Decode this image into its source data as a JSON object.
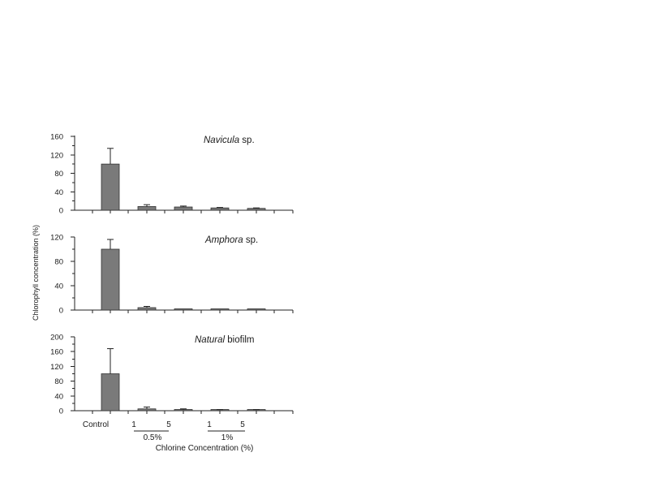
{
  "chart_data": [
    {
      "type": "bar",
      "title_italic": "Navicula",
      "title_rest": " sp.",
      "categories": [
        "Control",
        "0.5% 1",
        "0.5% 5",
        "1% 1",
        "1% 5"
      ],
      "values": [
        100,
        8,
        7,
        5,
        4
      ],
      "errors": [
        34,
        4,
        2,
        1,
        1
      ],
      "ylim": [
        0,
        160
      ],
      "yticks": [
        "0",
        "40",
        "80",
        "120",
        "160"
      ]
    },
    {
      "type": "bar",
      "title_italic": "Amphora",
      "title_rest": " sp.",
      "categories": [
        "Control",
        "0.5% 1",
        "0.5% 5",
        "1% 1",
        "1% 5"
      ],
      "values": [
        100,
        4,
        1,
        1,
        1
      ],
      "errors": [
        16,
        2,
        0,
        0,
        0
      ],
      "ylim": [
        0,
        120
      ],
      "yticks": [
        "0",
        "40",
        "80",
        "120"
      ]
    },
    {
      "type": "bar",
      "title_italic": "Natural",
      "title_rest": " biofilm",
      "categories": [
        "Control",
        "0.5% 1",
        "0.5% 5",
        "1% 1",
        "1% 5"
      ],
      "values": [
        100,
        5,
        3,
        2,
        2
      ],
      "errors": [
        68,
        5,
        2,
        1,
        1
      ],
      "ylim": [
        0,
        200
      ],
      "yticks": [
        "0",
        "40",
        "80",
        "120",
        "160",
        "200"
      ]
    }
  ],
  "ylabel": "Chlorophyll concentration (%)",
  "xlabel": "Chlorine Concentration (%)",
  "x_labels": {
    "control": "Control",
    "time_a": "1",
    "time_b": "5",
    "group_a": "0.5%",
    "group_b": "1%"
  }
}
